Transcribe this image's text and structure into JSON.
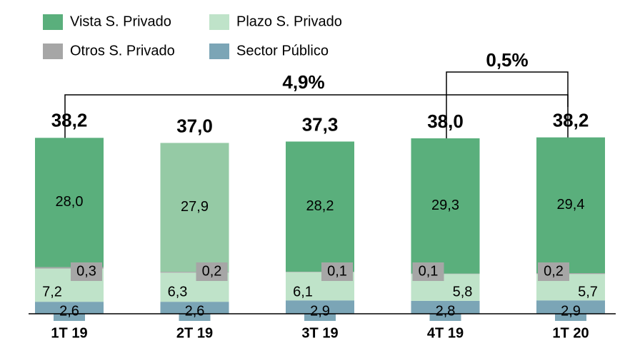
{
  "chart_data": {
    "type": "stacked_bar",
    "categories": [
      "1T 19",
      "2T 19",
      "3T 19",
      "4T 19",
      "1T 20"
    ],
    "series": [
      {
        "name": "Sector Público",
        "color": "#7ba5b6",
        "values": [
          2.6,
          2.6,
          2.9,
          2.8,
          2.9
        ],
        "value_labels": [
          "2,6",
          "2,6",
          "2,9",
          "2,8",
          "2,9"
        ]
      },
      {
        "name": "Plazo S. Privado",
        "color": "#bfe3c9",
        "values": [
          7.2,
          6.3,
          6.1,
          5.8,
          5.7
        ],
        "value_labels": [
          "7,2",
          "6,3",
          "6,1",
          "5,8",
          "5,7"
        ]
      },
      {
        "name": "Otros S. Privado",
        "color": "#a6a6a6",
        "values": [
          0.3,
          0.2,
          0.1,
          0.1,
          0.2
        ],
        "value_labels": [
          "0,3",
          "0,2",
          "0,1",
          "0,1",
          "0,2"
        ]
      },
      {
        "name": "Vista S. Privado",
        "color": "#5aaf7c",
        "colors": [
          "#5aaf7c",
          "#95caa5",
          "#5aaf7c",
          "#5aaf7c",
          "#5aaf7c"
        ],
        "values": [
          28.0,
          27.9,
          28.2,
          29.3,
          29.4
        ],
        "value_labels": [
          "28,0",
          "27,9",
          "28,2",
          "29,3",
          "29,4"
        ]
      }
    ],
    "totals": [
      {
        "value": 38.2,
        "label": "38,2"
      },
      {
        "value": 37.0,
        "label": "37,0"
      },
      {
        "value": 37.3,
        "label": "37,3"
      },
      {
        "value": 38.0,
        "label": "38,0"
      },
      {
        "value": 38.2,
        "label": "38,2"
      }
    ],
    "annotations": [
      "4,9%",
      "0,5%"
    ],
    "ylim": [
      0,
      40
    ]
  }
}
